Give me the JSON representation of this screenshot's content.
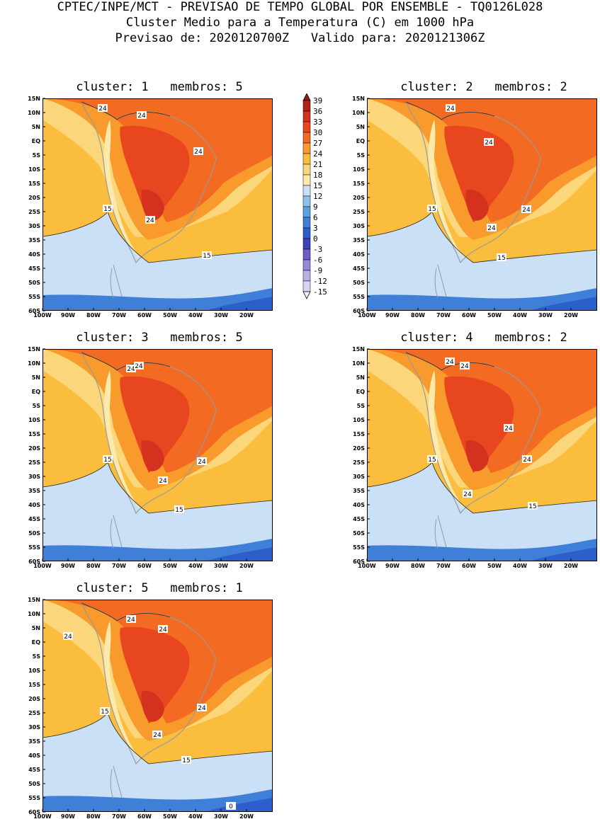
{
  "header": {
    "line1": "CPTEC/INPE/MCT - PREVISAO DE TEMPO GLOBAL POR ENSEMBLE - TQ0126L028",
    "line2": "Cluster Medio para a Temperatura (C) em 1000 hPa",
    "line3": "Previsao de: 2020120700Z   Valido para: 2020121306Z"
  },
  "axes": {
    "lat_labels": [
      "15N",
      "10N",
      "5N",
      "EQ",
      "5S",
      "10S",
      "15S",
      "20S",
      "25S",
      "30S",
      "35S",
      "40S",
      "45S",
      "50S",
      "55S",
      "60S"
    ],
    "lon_labels": [
      "100W",
      "90W",
      "80W",
      "70W",
      "60W",
      "50W",
      "40W",
      "30W",
      "20W"
    ]
  },
  "colorbar": {
    "ticks": [
      "39",
      "36",
      "33",
      "30",
      "27",
      "24",
      "21",
      "18",
      "15",
      "12",
      "9",
      "6",
      "3",
      "0",
      "-3",
      "-6",
      "-9",
      "-12",
      "-15"
    ],
    "colors": [
      "#8b1a12",
      "#b0221c",
      "#d4321e",
      "#e8461e",
      "#f36a22",
      "#f89a2c",
      "#fbbd3d",
      "#fcd67a",
      "#fde9a9",
      "#c9e0f7",
      "#8ec2ec",
      "#5ba2e2",
      "#3f7fd8",
      "#2c5fcb",
      "#3f3fb8",
      "#6a5ec9",
      "#9488d8",
      "#b8b0e6",
      "#dad4f2",
      "#f0ecfa"
    ]
  },
  "panels": [
    {
      "title": "cluster: 1   membros: 5",
      "labels": [
        "24",
        "24",
        "24",
        "24",
        "15",
        "15"
      ]
    },
    {
      "title": "cluster: 2   membros: 2",
      "labels": [
        "24",
        "24",
        "24",
        "24",
        "15",
        "15"
      ]
    },
    {
      "title": "cluster: 3   membros: 5",
      "labels": [
        "24",
        "24",
        "24",
        "24",
        "15",
        "15"
      ]
    },
    {
      "title": "cluster: 4   membros: 2",
      "labels": [
        "24",
        "24",
        "24",
        "24",
        "24",
        "15",
        "15"
      ]
    },
    {
      "title": "cluster: 5   membros: 1",
      "labels": [
        "24",
        "24",
        "24",
        "24",
        "24",
        "15",
        "15",
        "0"
      ]
    }
  ]
}
